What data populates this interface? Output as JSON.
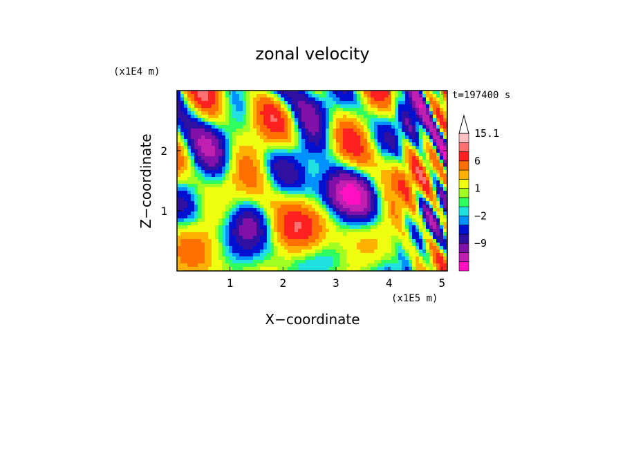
{
  "chart_data": {
    "type": "heatmap",
    "title": "zonal velocity",
    "xlabel": "X−coordinate",
    "ylabel": "Z−coordinate",
    "x_unit": "(x1E5 m)",
    "y_unit": "(x1E4 m)",
    "time_label": "t=197400 s",
    "xlim": [
      0.0,
      5.1
    ],
    "ylim": [
      0.0,
      3.0
    ],
    "x_ticks": [
      1,
      2,
      3,
      4,
      5
    ],
    "y_ticks": [
      1,
      2
    ],
    "colorbar": {
      "levels": [
        -15,
        -12,
        -9,
        -6,
        -4,
        -2,
        -1,
        0,
        1,
        2,
        4,
        6,
        9,
        12,
        15.1
      ],
      "colors": [
        "#ff10c0",
        "#c020b0",
        "#8010a8",
        "#3010a0",
        "#0010d0",
        "#0090ff",
        "#20e0e0",
        "#30ff60",
        "#a0ff20",
        "#f0ff10",
        "#ffb000",
        "#ff7000",
        "#ff2020",
        "#ff7070",
        "#ffc0c0"
      ],
      "labels": [
        {
          "text": "15.1",
          "value": 15.1
        },
        {
          "text": "6",
          "value": 6
        },
        {
          "text": "1",
          "value": 1
        },
        {
          "text": "−2",
          "value": -2
        },
        {
          "text": "−9",
          "value": -9
        }
      ]
    }
  }
}
